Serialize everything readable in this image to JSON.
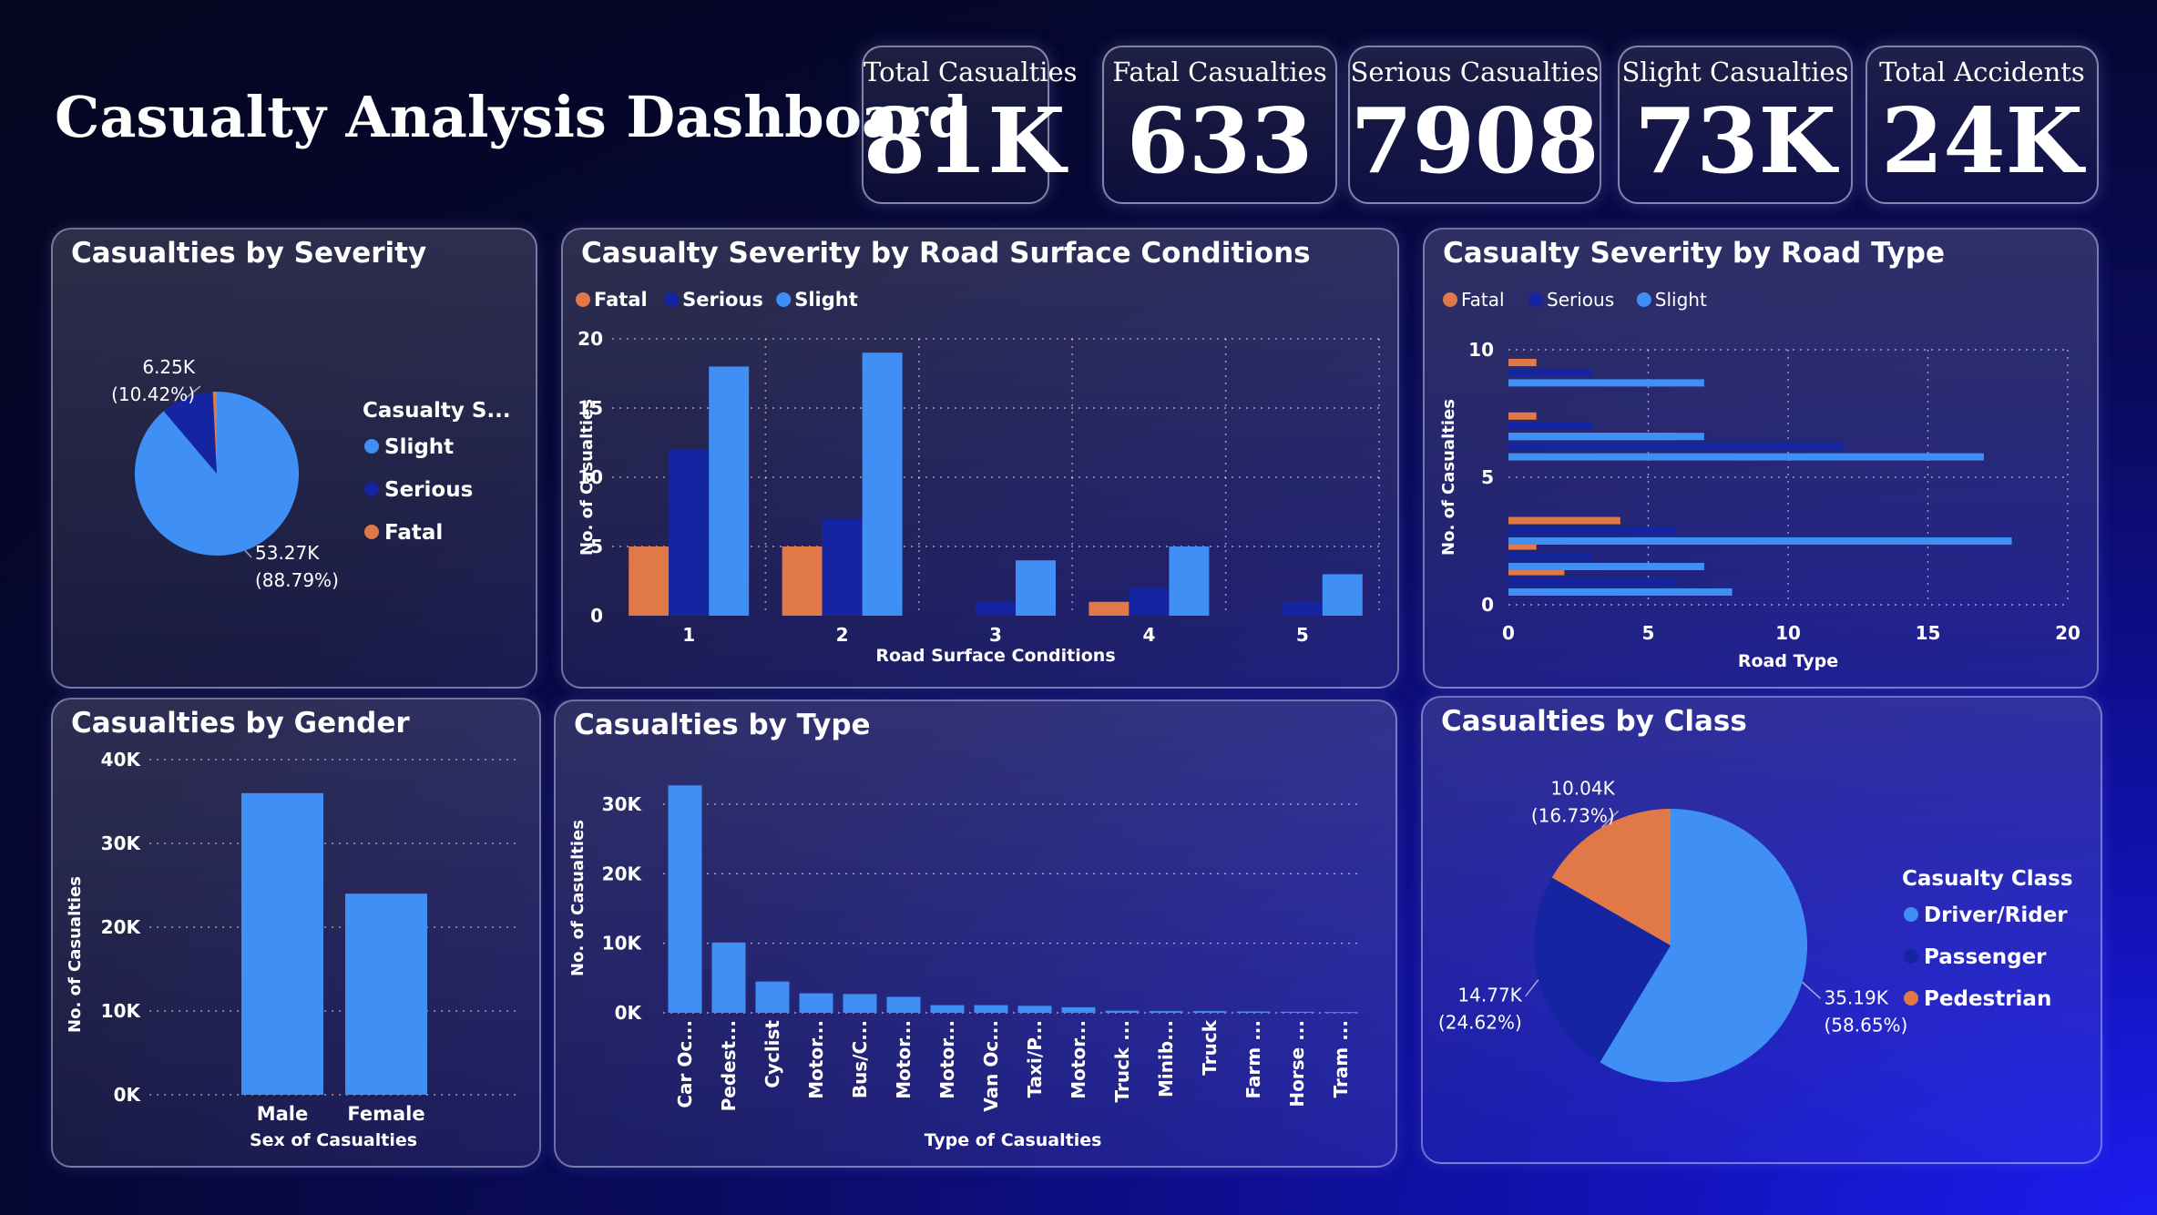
{
  "title": "Casualty Analysis Dashboard",
  "colors": {
    "fatal": "#e07848",
    "serious": "#1524a0",
    "slight": "#3f8ff5"
  },
  "kpis": [
    {
      "label": "Total Casualties",
      "value": "81K"
    },
    {
      "label": "Fatal Casualties",
      "value": "633"
    },
    {
      "label": "Serious Casualties",
      "value": "7908"
    },
    {
      "label": "Slight Casualties",
      "value": "73K"
    },
    {
      "label": "Total Accidents",
      "value": "24K"
    }
  ],
  "chart_data": [
    {
      "id": "severity",
      "type": "pie",
      "title": "Casualties by Severity",
      "legend_title": "Casualty S...",
      "legend_position": "right",
      "slices": [
        {
          "name": "Slight",
          "value": 53.27,
          "label": "53.27K",
          "pct": "(88.79%)",
          "color": "#3f8ff5"
        },
        {
          "name": "Serious",
          "value": 6.25,
          "label": "6.25K",
          "pct": "(10.42%)",
          "color": "#1524a0"
        },
        {
          "name": "Fatal",
          "value": 0.47,
          "label": "",
          "pct": "",
          "color": "#e07848"
        }
      ]
    },
    {
      "id": "surface",
      "type": "bar",
      "title": "Casualty Severity by Road Surface Conditions",
      "xlabel": "Road Surface Conditions",
      "ylabel": "No. of Casualties",
      "ylim": [
        0,
        20
      ],
      "yticks": [
        0,
        5,
        10,
        15,
        20
      ],
      "categories": [
        "1",
        "2",
        "3",
        "4",
        "5"
      ],
      "legend_position": "top-left",
      "grid": true,
      "series": [
        {
          "name": "Fatal",
          "values": [
            5,
            5,
            0,
            1,
            0
          ]
        },
        {
          "name": "Serious",
          "values": [
            12,
            7,
            1,
            2,
            1
          ]
        },
        {
          "name": "Slight",
          "values": [
            18,
            19,
            4,
            5,
            3
          ]
        }
      ]
    },
    {
      "id": "roadtype",
      "type": "bar",
      "orientation": "horizontal",
      "title": "Casualty Severity by Road Type",
      "xlabel": "Road Type",
      "ylabel": "No. of Casualties",
      "xlim": [
        0,
        20
      ],
      "xticks": [
        0,
        5,
        10,
        15,
        20
      ],
      "ylim": [
        0,
        10
      ],
      "yticks": [
        0,
        5,
        10
      ],
      "legend_position": "top-left",
      "grid": true,
      "series": [
        {
          "name": "Fatal",
          "points": [
            [
              1,
              9.5
            ],
            [
              1,
              7.4
            ],
            [
              6,
              6.6
            ],
            [
              4,
              3.3
            ],
            [
              1,
              2.3
            ],
            [
              2,
              1.3
            ]
          ]
        },
        {
          "name": "Serious",
          "points": [
            [
              3,
              9.1
            ],
            [
              3,
              7.0
            ],
            [
              12,
              6.2
            ],
            [
              6,
              2.9
            ],
            [
              3,
              1.9
            ],
            [
              6,
              0.9
            ]
          ]
        },
        {
          "name": "Slight",
          "points": [
            [
              7,
              8.7
            ],
            [
              7,
              6.6
            ],
            [
              17,
              5.8
            ],
            [
              18,
              2.5
            ],
            [
              7,
              1.5
            ],
            [
              8,
              0.5
            ]
          ]
        }
      ]
    },
    {
      "id": "gender",
      "type": "bar",
      "title": "Casualties by Gender",
      "xlabel": "Sex of Casualties",
      "ylabel": "No. of Casualties",
      "ylim": [
        0,
        40000
      ],
      "yticks": [
        0,
        10000,
        20000,
        30000,
        40000
      ],
      "ytick_labels": [
        "0K",
        "10K",
        "20K",
        "30K",
        "40K"
      ],
      "categories": [
        "Male",
        "Female"
      ],
      "values": [
        36000,
        24000
      ],
      "grid": true
    },
    {
      "id": "ctype",
      "type": "bar",
      "title": "Casualties by Type",
      "xlabel": "Type of Casualties",
      "ylabel": "No. of Casualties",
      "ylim": [
        0,
        33000
      ],
      "yticks": [
        0,
        10000,
        20000,
        30000
      ],
      "ytick_labels": [
        "0K",
        "10K",
        "20K",
        "30K"
      ],
      "categories": [
        "Car Oc...",
        "Pedest...",
        "Cyclist",
        "Motor...",
        "Bus/C...",
        "Motor...",
        "Motor...",
        "Van Oc...",
        "Taxi/P...",
        "Motor...",
        "Truck ...",
        "Minib...",
        "Truck",
        "Farm ...",
        "Horse ...",
        "Tram ..."
      ],
      "values": [
        32700,
        10100,
        4500,
        2800,
        2700,
        2300,
        1100,
        1100,
        1000,
        800,
        300,
        250,
        250,
        200,
        150,
        100
      ],
      "grid": true
    },
    {
      "id": "cclass",
      "type": "pie",
      "title": "Casualties by Class",
      "legend_title": "Casualty Class",
      "legend_position": "right",
      "slices": [
        {
          "name": "Driver/Rider",
          "value": 35.19,
          "label": "35.19K",
          "pct": "(58.65%)",
          "color": "#3f8ff5"
        },
        {
          "name": "Passenger",
          "value": 14.77,
          "label": "14.77K",
          "pct": "(24.62%)",
          "color": "#1524a0"
        },
        {
          "name": "Pedestrian",
          "value": 10.04,
          "label": "10.04K",
          "pct": "(16.73%)",
          "color": "#e07848"
        }
      ]
    }
  ]
}
